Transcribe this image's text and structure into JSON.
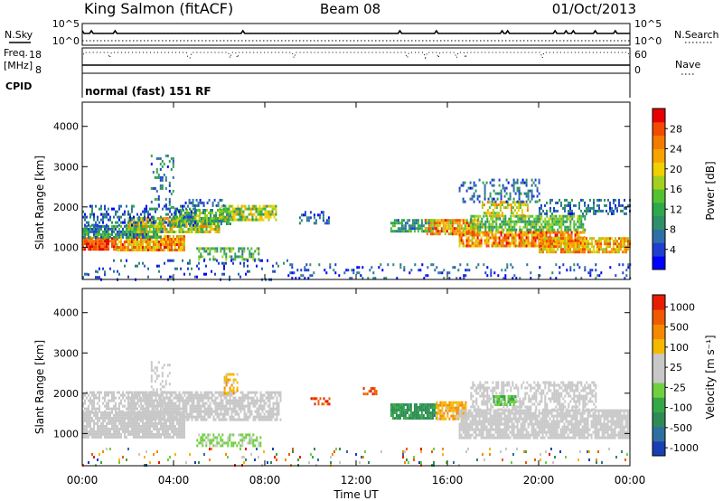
{
  "header": {
    "station": "King Salmon (fitACF)",
    "beam": "Beam 08",
    "date": "01/Oct/2013"
  },
  "params": {
    "nsky_label": "N.Sky",
    "nsearch_label": "N.Search",
    "freq_label": "Freq.",
    "freq_unit": "[MHz]",
    "nave_label": "Nave",
    "cpid_label": "CPID",
    "cpid_text": "normal (fast) 151 RF",
    "noise_ticks": [
      "10^5",
      "10^0"
    ],
    "freq_ticks": [
      "18",
      "8"
    ],
    "nave_ticks": [
      "60",
      "0"
    ]
  },
  "chart_data": [
    {
      "type": "heatmap",
      "name": "power",
      "ylabel": "Slant Range [km]",
      "xlabel": "Time UT",
      "ylim": [
        200,
        4600
      ],
      "y_ticks": [
        "1000",
        "2000",
        "3000",
        "4000"
      ],
      "x_ticks": [
        "00:00",
        "04:00",
        "08:00",
        "12:00",
        "16:00",
        "20:00",
        "00:00"
      ],
      "colorbar": {
        "label": "Power [dB]",
        "ticks": [
          "4",
          "8",
          "12",
          "16",
          "20",
          "24",
          "28"
        ],
        "colors": [
          "#0000ff",
          "#1f3fd0",
          "#2e6fa8",
          "#2f8f6a",
          "#2ea84a",
          "#52c230",
          "#a3d020",
          "#f0d000",
          "#f7a400",
          "#f57a00",
          "#f24a00",
          "#e60000"
        ]
      },
      "bands": [
        {
          "t0": 0.0,
          "t1": 1.0,
          "r0": 250,
          "r1": 420,
          "lvl": [
            0.1,
            0.35
          ],
          "d": 0.35
        },
        {
          "t0": 0.0,
          "t1": 1.5,
          "r0": 950,
          "r1": 1250,
          "lvl": [
            0.75,
            0.98
          ],
          "d": 0.95
        },
        {
          "t0": 1.5,
          "t1": 4.5,
          "r0": 900,
          "r1": 1300,
          "lvl": [
            0.55,
            0.95
          ],
          "d": 0.9
        },
        {
          "t0": 0.0,
          "t1": 3.5,
          "r0": 1250,
          "r1": 1550,
          "lvl": [
            0.1,
            0.5
          ],
          "d": 0.8
        },
        {
          "t0": 2.0,
          "t1": 6.0,
          "r0": 1350,
          "r1": 1750,
          "lvl": [
            0.35,
            0.8
          ],
          "d": 0.8
        },
        {
          "t0": 4.0,
          "t1": 6.5,
          "r0": 1550,
          "r1": 1950,
          "lvl": [
            0.2,
            0.6
          ],
          "d": 0.7
        },
        {
          "t0": 6.0,
          "t1": 8.5,
          "r0": 1700,
          "r1": 2050,
          "lvl": [
            0.3,
            0.75
          ],
          "d": 0.7
        },
        {
          "t0": 0.0,
          "t1": 5.0,
          "r0": 1550,
          "r1": 2050,
          "lvl": [
            0.05,
            0.35
          ],
          "d": 0.35
        },
        {
          "t0": 3.0,
          "t1": 4.0,
          "r0": 2000,
          "r1": 3300,
          "lvl": [
            0.05,
            0.45
          ],
          "d": 0.25
        },
        {
          "t0": 4.5,
          "t1": 6.2,
          "r0": 2000,
          "r1": 2200,
          "lvl": [
            0.05,
            0.3
          ],
          "d": 0.4
        },
        {
          "t0": 5.0,
          "t1": 7.8,
          "r0": 700,
          "r1": 1000,
          "lvl": [
            0.2,
            0.6
          ],
          "d": 0.5
        },
        {
          "t0": 0.0,
          "t1": 9.0,
          "r0": 200,
          "r1": 700,
          "lvl": [
            0.0,
            0.3
          ],
          "d": 0.12
        },
        {
          "t0": 9.5,
          "t1": 10.8,
          "r0": 1600,
          "r1": 1900,
          "lvl": [
            0.05,
            0.3
          ],
          "d": 0.35
        },
        {
          "t0": 13.5,
          "t1": 15.5,
          "r0": 1400,
          "r1": 1700,
          "lvl": [
            0.15,
            0.5
          ],
          "d": 0.7
        },
        {
          "t0": 15.0,
          "t1": 17.3,
          "r0": 1350,
          "r1": 1700,
          "lvl": [
            0.45,
            0.95
          ],
          "d": 0.85
        },
        {
          "t0": 16.5,
          "t1": 22.0,
          "r0": 1050,
          "r1": 1400,
          "lvl": [
            0.55,
            0.98
          ],
          "d": 0.85
        },
        {
          "t0": 20.0,
          "t1": 24.0,
          "r0": 900,
          "r1": 1250,
          "lvl": [
            0.5,
            0.9
          ],
          "d": 0.8
        },
        {
          "t0": 17.0,
          "t1": 22.0,
          "r0": 1400,
          "r1": 1800,
          "lvl": [
            0.25,
            0.6
          ],
          "d": 0.75
        },
        {
          "t0": 17.5,
          "t1": 19.5,
          "r0": 1800,
          "r1": 2150,
          "lvl": [
            0.45,
            0.8
          ],
          "d": 0.6
        },
        {
          "t0": 16.5,
          "t1": 20.0,
          "r0": 2100,
          "r1": 2700,
          "lvl": [
            0.05,
            0.35
          ],
          "d": 0.3
        },
        {
          "t0": 20.0,
          "t1": 24.0,
          "r0": 1800,
          "r1": 2200,
          "lvl": [
            0.05,
            0.35
          ],
          "d": 0.45
        },
        {
          "t0": 9.0,
          "t1": 24.0,
          "r0": 200,
          "r1": 600,
          "lvl": [
            0.0,
            0.3
          ],
          "d": 0.15
        }
      ]
    },
    {
      "type": "heatmap",
      "name": "velocity",
      "ylabel": "Slant Range [km]",
      "xlabel": "Time UT",
      "ylim": [
        200,
        4600
      ],
      "y_ticks": [
        "1000",
        "2000",
        "3000",
        "4000"
      ],
      "x_ticks": [
        "00:00",
        "04:00",
        "08:00",
        "12:00",
        "16:00",
        "20:00",
        "00:00"
      ],
      "colorbar": {
        "label": "Velocity [m s⁻¹]",
        "ticks": [
          "1000",
          "500",
          "100",
          "25",
          "-25",
          "-100",
          "-500",
          "-1000"
        ],
        "colors": [
          "#1a3fb4",
          "#2e6fa0",
          "#2e8b57",
          "#35a845",
          "#6fd040",
          "#c8c8c8",
          "#c8c8c8",
          "#f5b800",
          "#f58a00",
          "#f05a00",
          "#e61e00"
        ]
      },
      "bands": [
        {
          "t0": 0.0,
          "t1": 4.5,
          "r0": 900,
          "r1": 1550,
          "lvl": [
            0.5,
            0.56
          ],
          "d": 0.9
        },
        {
          "t0": 0.0,
          "t1": 3.5,
          "r0": 1550,
          "r1": 2050,
          "lvl": [
            0.5,
            0.56
          ],
          "d": 0.55
        },
        {
          "t0": 2.0,
          "t1": 8.7,
          "r0": 1350,
          "r1": 2050,
          "lvl": [
            0.5,
            0.56
          ],
          "d": 0.75
        },
        {
          "t0": 3.0,
          "t1": 3.8,
          "r0": 2000,
          "r1": 2800,
          "lvl": [
            0.5,
            0.56
          ],
          "d": 0.35
        },
        {
          "t0": 5.0,
          "t1": 7.8,
          "r0": 700,
          "r1": 1000,
          "lvl": [
            0.38,
            0.48
          ],
          "d": 0.55
        },
        {
          "t0": 6.2,
          "t1": 6.8,
          "r0": 2000,
          "r1": 2500,
          "lvl": [
            0.62,
            0.8
          ],
          "d": 0.6
        },
        {
          "t0": 10.0,
          "t1": 10.8,
          "r0": 1700,
          "r1": 1900,
          "lvl": [
            0.8,
            0.98
          ],
          "d": 0.6
        },
        {
          "t0": 12.3,
          "t1": 12.9,
          "r0": 1950,
          "r1": 2150,
          "lvl": [
            0.8,
            0.98
          ],
          "d": 0.6
        },
        {
          "t0": 13.5,
          "t1": 15.5,
          "r0": 1350,
          "r1": 1750,
          "lvl": [
            0.18,
            0.32
          ],
          "d": 0.85
        },
        {
          "t0": 15.5,
          "t1": 16.8,
          "r0": 1350,
          "r1": 1800,
          "lvl": [
            0.62,
            0.8
          ],
          "d": 0.8
        },
        {
          "t0": 16.5,
          "t1": 24.0,
          "r0": 900,
          "r1": 1600,
          "lvl": [
            0.5,
            0.56
          ],
          "d": 0.85
        },
        {
          "t0": 17.0,
          "t1": 22.5,
          "r0": 1600,
          "r1": 2300,
          "lvl": [
            0.5,
            0.56
          ],
          "d": 0.55
        },
        {
          "t0": 18.0,
          "t1": 19.0,
          "r0": 1700,
          "r1": 1950,
          "lvl": [
            0.3,
            0.45
          ],
          "d": 0.7
        },
        {
          "t0": 0.0,
          "t1": 24.0,
          "r0": 200,
          "r1": 650,
          "lvl": [
            0.0,
            1.0
          ],
          "d": 0.08
        }
      ]
    }
  ]
}
